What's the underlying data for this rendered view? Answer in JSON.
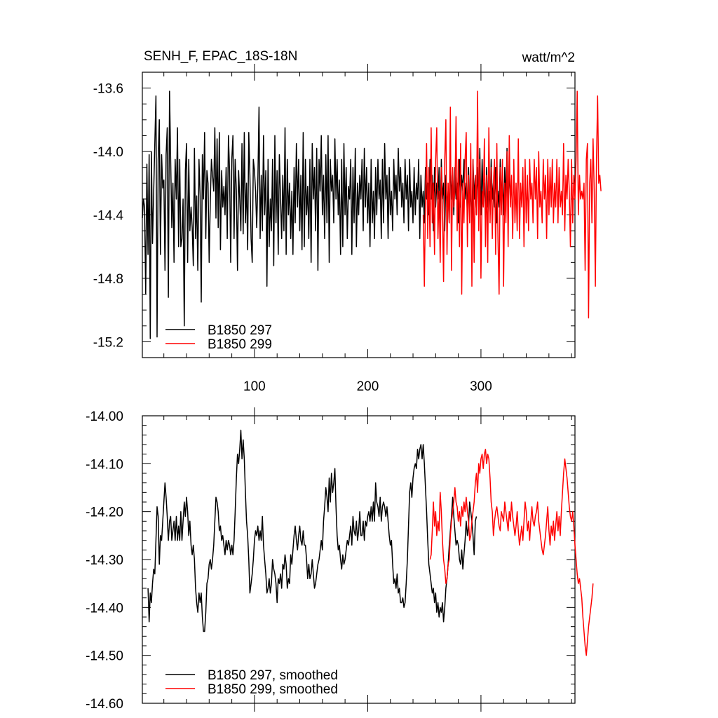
{
  "chart_data": [
    {
      "type": "line",
      "title": "SENH_F, EPAC_18S-18N",
      "units": "watt/m^2",
      "xlim": [
        1,
        383
      ],
      "ylim": [
        -15.3,
        -13.5
      ],
      "xticks": [
        100,
        200,
        300
      ],
      "xtick_labels": [
        "100",
        "200",
        "300"
      ],
      "yticks": [
        -13.6,
        -14.0,
        -14.4,
        -14.8,
        -15.2
      ],
      "ytick_labels": [
        "-13.6",
        "-14.0",
        "-14.4",
        "-14.8",
        "-15.2"
      ],
      "legend_position": "bottom-left",
      "series": [
        {
          "name": "B1850 297",
          "color": "#000000",
          "x_start": 1,
          "values": [
            -14.42,
            -14.3,
            -14.35,
            -14.9,
            -14.08,
            -14.65,
            -14.02,
            -15.18,
            -14.0,
            -14.58,
            -14.25,
            -13.95,
            -13.65,
            -15.17,
            -14.05,
            -13.8,
            -14.65,
            -14.02,
            -14.23,
            -14.18,
            -14.75,
            -14.02,
            -13.85,
            -14.92,
            -13.62,
            -14.05,
            -14.48,
            -14.2,
            -14.7,
            -14.05,
            -14.3,
            -13.85,
            -14.6,
            -14.05,
            -14.6,
            -14.55,
            -14.3,
            -15.1,
            -14.12,
            -13.95,
            -14.7,
            -14.05,
            -14.5,
            -14.35,
            -14.48,
            -14.72,
            -13.98,
            -14.55,
            -14.28,
            -14.75,
            -14.05,
            -14.28,
            -14.95,
            -14.02,
            -14.3,
            -13.88,
            -14.55,
            -14.12,
            -14.2,
            -14.7,
            -14.32,
            -14.05,
            -14.15,
            -14.25,
            -13.85,
            -14.42,
            -13.92,
            -14.48,
            -13.88,
            -14.62,
            -14.12,
            -14.35,
            -14.22,
            -14.4,
            -14.1,
            -14.55,
            -13.9,
            -14.12,
            -14.7,
            -14.05,
            -13.9,
            -14.55,
            -14.05,
            -14.25,
            -14.75,
            -14.12,
            -14.3,
            -14.5,
            -13.95,
            -14.52,
            -13.88,
            -14.45,
            -14.2,
            -14.62,
            -13.88,
            -14.15,
            -14.55,
            -14.7,
            -14.05,
            -14.12,
            -14.25,
            -14.48,
            -14.2,
            -13.72,
            -14.55,
            -14.15,
            -14.5,
            -13.9,
            -14.4,
            -14.12,
            -14.85,
            -14.05,
            -14.6,
            -14.3,
            -14.5,
            -14.05,
            -14.72,
            -13.9,
            -14.45,
            -14.12,
            -14.65,
            -14.02,
            -14.3,
            -14.55,
            -14.15,
            -14.5,
            -13.85,
            -14.65,
            -14.05,
            -14.4,
            -14.2,
            -14.55,
            -14.25,
            -14.65,
            -14.1,
            -14.45,
            -13.95,
            -14.35,
            -14.05,
            -14.5,
            -14.15,
            -14.62,
            -13.88,
            -14.6,
            -14.05,
            -14.4,
            -14.22,
            -14.55,
            -14.05,
            -14.7,
            -13.95,
            -14.3,
            -14.1,
            -14.5,
            -13.98,
            -14.75,
            -14.05,
            -14.25,
            -13.9,
            -14.4,
            -14.15,
            -14.55,
            -14.02,
            -14.45,
            -13.9,
            -14.7,
            -14.05,
            -14.25,
            -14.15,
            -14.45,
            -13.92,
            -14.3,
            -14.05,
            -14.4,
            -14.18,
            -14.65,
            -14.05,
            -14.6,
            -13.95,
            -14.4,
            -14.1,
            -14.55,
            -14.22,
            -14.3,
            -14.05,
            -14.65,
            -14.1,
            -14.45,
            -13.98,
            -14.6,
            -14.2,
            -14.4,
            -14.15,
            -14.3,
            -14.05,
            -14.5,
            -13.98,
            -14.35,
            -14.1,
            -14.45,
            -14.2,
            -14.6,
            -14.05,
            -14.45,
            -14.25,
            -14.55,
            -14.1,
            -14.4,
            -14.05,
            -14.3,
            -14.18,
            -14.55,
            -14.05,
            -14.45,
            -13.95,
            -14.3,
            -14.15,
            -14.55,
            -14.1,
            -14.4,
            -14.25,
            -14.5,
            -14.05,
            -14.3,
            -14.15,
            -14.4,
            -13.98,
            -14.25,
            -14.1,
            -14.35,
            -14.2,
            -14.45,
            -14.05,
            -14.3,
            -14.15,
            -14.5,
            -14.05,
            -14.35,
            -14.25,
            -14.45,
            -14.1,
            -14.4,
            -14.2,
            -14.3,
            -14.05,
            -14.55,
            -14.15,
            -14.35,
            -14.25,
            -14.45,
            -14.1,
            -14.3,
            -14.2,
            -14.4,
            -14.05,
            -14.3,
            -14.15,
            -14.5,
            -14.1,
            -14.35,
            -14.2,
            -14.3,
            -14.1,
            -14.45,
            -14.05,
            -14.3,
            -14.2,
            -14.5,
            -14.15,
            -14.35,
            -14.25,
            -14.45,
            -14.05,
            -14.3,
            -14.15,
            -14.4,
            -14.1,
            -14.3,
            -14.2,
            -14.45,
            -14.05,
            -14.35,
            -14.15,
            -14.25,
            -14.05,
            -14.3,
            -14.2,
            -14.4,
            -14.1,
            -14.35,
            -14.25,
            -14.45,
            -14.05,
            -14.3,
            -14.15,
            -14.4,
            -14.1,
            -14.3,
            -13.98,
            -14.4,
            -14.05,
            -14.3,
            -14.2,
            -14.45,
            -14.1,
            -14.35,
            -14.25,
            -14.4,
            -14.05,
            -14.3,
            -14.2,
            -14.35,
            -14.1,
            -14.45,
            -14.25,
            -14.35,
            -14.05,
            -14.3,
            -14.15,
            -14.4,
            -14.1,
            -14.3,
            -13.98,
            -14.35,
            -14.15,
            -14.25
          ]
        },
        {
          "name": "B1850 299",
          "color": "#ff0000",
          "x_start": 249,
          "values": [
            -14.4,
            -14.85,
            -14.3,
            -13.95,
            -14.55,
            -14.1,
            -14.6,
            -13.85,
            -14.45,
            -14.2,
            -14.65,
            -14.05,
            -13.85,
            -14.55,
            -14.25,
            -14.7,
            -14.1,
            -14.35,
            -14.82,
            -14.05,
            -13.8,
            -14.65,
            -14.2,
            -14.45,
            -13.72,
            -14.75,
            -14.1,
            -14.35,
            -14.25,
            -13.78,
            -14.5,
            -14.05,
            -14.6,
            -13.95,
            -14.9,
            -14.2,
            -14.45,
            -14.05,
            -13.88,
            -14.6,
            -14.15,
            -14.45,
            -13.95,
            -14.85,
            -14.05,
            -14.7,
            -14.15,
            -14.4,
            -13.62,
            -14.5,
            -14.05,
            -14.8,
            -14.25,
            -14.35,
            -13.92,
            -14.6,
            -14.15,
            -14.7,
            -13.85,
            -14.45,
            -14.1,
            -14.55,
            -14.2,
            -14.05,
            -14.65,
            -13.95,
            -14.55,
            -14.9,
            -14.1,
            -14.4,
            -14.05,
            -14.85,
            -14.2,
            -14.45,
            -14.0,
            -14.6,
            -13.9,
            -14.35,
            -14.15,
            -14.55,
            -14.05,
            -14.45,
            -14.2,
            -14.5,
            -13.92,
            -14.55,
            -14.2,
            -14.35,
            -14.1,
            -14.6,
            -14.05,
            -14.45,
            -14.15,
            -14.5,
            -14.05,
            -14.3,
            -14.2,
            -14.45,
            -14.05,
            -14.3,
            -14.1,
            -14.55,
            -14.0,
            -14.35,
            -14.25,
            -14.45,
            -14.05,
            -14.3,
            -14.15,
            -14.55,
            -14.05,
            -14.4,
            -14.1,
            -14.35,
            -14.05,
            -14.45,
            -14.2,
            -14.35,
            -14.05,
            -14.45,
            -14.1,
            -14.35,
            -14.25,
            -14.4,
            -13.95,
            -14.5,
            -14.15,
            -14.3,
            -14.05,
            -14.25,
            -14.6,
            -14.05,
            -14.45,
            -14.15,
            -14.3,
            -14.05,
            -13.62,
            -14.4,
            -14.15,
            -14.3,
            -14.25,
            -14.3,
            -14.2,
            -14.75,
            -14.05,
            -13.95,
            -15.05,
            -14.2,
            -14.05,
            -14.45,
            -13.92,
            -14.25,
            -14.85,
            -14.05,
            -13.65,
            -14.2,
            -14.15,
            -14.25
          ]
        }
      ]
    },
    {
      "type": "line",
      "xlim": [
        1,
        383
      ],
      "ylim": [
        -14.6,
        -14.0
      ],
      "yticks": [
        -14.0,
        -14.1,
        -14.2,
        -14.3,
        -14.4,
        -14.5,
        -14.6
      ],
      "ytick_labels": [
        "-14.00",
        "-14.10",
        "-14.20",
        "-14.30",
        "-14.40",
        "-14.50",
        "-14.60"
      ],
      "legend_position": "bottom-left",
      "series": [
        {
          "name": "B1850 297, smoothed",
          "color": "#000000",
          "x_start": 6,
          "values": [
            -14.36,
            -14.43,
            -14.37,
            -14.39,
            -14.35,
            -14.32,
            -14.33,
            -14.26,
            -14.19,
            -14.21,
            -14.31,
            -14.25,
            -14.26,
            -14.22,
            -14.18,
            -14.14,
            -14.17,
            -14.21,
            -14.26,
            -14.22,
            -14.21,
            -14.26,
            -14.24,
            -14.22,
            -14.26,
            -14.21,
            -14.26,
            -14.23,
            -14.26,
            -14.2,
            -14.26,
            -14.22,
            -14.18,
            -14.21,
            -14.17,
            -14.2,
            -14.25,
            -14.22,
            -14.27,
            -14.29,
            -14.27,
            -14.3,
            -14.36,
            -14.39,
            -14.41,
            -14.37,
            -14.39,
            -14.37,
            -14.42,
            -14.45,
            -14.45,
            -14.41,
            -14.35,
            -14.34,
            -14.31,
            -14.3,
            -14.32,
            -14.3,
            -14.27,
            -14.22,
            -14.17,
            -14.18,
            -14.2,
            -14.24,
            -14.23,
            -14.26,
            -14.25,
            -14.27,
            -14.29,
            -14.26,
            -14.28,
            -14.26,
            -14.27,
            -14.29,
            -14.27,
            -14.29,
            -14.26,
            -14.2,
            -14.13,
            -14.08,
            -14.1,
            -14.07,
            -14.03,
            -14.09,
            -14.05,
            -14.09,
            -14.16,
            -14.22,
            -14.25,
            -14.3,
            -14.37,
            -14.35,
            -14.33,
            -14.3,
            -14.26,
            -14.24,
            -14.25,
            -14.23,
            -14.26,
            -14.24,
            -14.26,
            -14.21,
            -14.27,
            -14.3,
            -14.33,
            -14.37,
            -14.36,
            -14.34,
            -14.37,
            -14.35,
            -14.3,
            -14.32,
            -14.33,
            -14.35,
            -14.39,
            -14.34,
            -14.35,
            -14.33,
            -14.36,
            -14.31,
            -14.32,
            -14.29,
            -14.31,
            -14.36,
            -14.34,
            -14.35,
            -14.29,
            -14.31,
            -14.28,
            -14.25,
            -14.23,
            -14.26,
            -14.28,
            -14.25,
            -14.23,
            -14.26,
            -14.27,
            -14.24,
            -14.27,
            -14.27,
            -14.3,
            -14.34,
            -14.31,
            -14.34,
            -14.33,
            -14.3,
            -14.33,
            -14.36,
            -14.35,
            -14.33,
            -14.31,
            -14.3,
            -14.28,
            -14.26,
            -14.28,
            -14.22,
            -14.19,
            -14.15,
            -14.17,
            -14.2,
            -14.13,
            -14.18,
            -14.12,
            -14.16,
            -14.14,
            -14.11,
            -14.19,
            -14.25,
            -14.28,
            -14.27,
            -14.3,
            -14.32,
            -14.29,
            -14.31,
            -14.3,
            -14.28,
            -14.26,
            -14.27,
            -14.25,
            -14.23,
            -14.27,
            -14.21,
            -14.24,
            -14.25,
            -14.22,
            -14.26,
            -14.24,
            -14.2,
            -14.25,
            -14.25,
            -14.22,
            -14.26,
            -14.22,
            -14.23,
            -14.21,
            -14.2,
            -14.22,
            -14.19,
            -14.22,
            -14.18,
            -14.22,
            -14.14,
            -14.18,
            -14.19,
            -14.21,
            -14.17,
            -14.22,
            -14.19,
            -14.18,
            -14.19,
            -14.21,
            -14.19,
            -14.22,
            -14.25,
            -14.27,
            -14.26,
            -14.31,
            -14.35,
            -14.34,
            -14.36,
            -14.33,
            -14.37,
            -14.36,
            -14.39,
            -14.39,
            -14.38,
            -14.4,
            -14.39,
            -14.35,
            -14.3,
            -14.23,
            -14.16,
            -14.14,
            -14.17,
            -14.13,
            -14.11,
            -14.1,
            -14.11,
            -14.07,
            -14.09,
            -14.07,
            -14.06,
            -14.09,
            -14.06,
            -14.1,
            -14.15,
            -14.2,
            -14.26,
            -14.31,
            -14.33,
            -14.35,
            -14.37,
            -14.36,
            -14.39,
            -14.37,
            -14.41,
            -14.39,
            -14.42,
            -14.4,
            -14.41,
            -14.39,
            -14.43,
            -14.4,
            -14.36,
            -14.34,
            -14.31,
            -14.27,
            -14.24,
            -14.21,
            -14.17,
            -14.21,
            -14.24,
            -14.27,
            -14.26,
            -14.27,
            -14.3,
            -14.31,
            -14.28,
            -14.32,
            -14.29,
            -14.26,
            -14.22,
            -14.25,
            -14.23,
            -14.18,
            -14.2,
            -14.22,
            -14.25,
            -14.29,
            -14.22,
            -14.21
          ]
        },
        {
          "name": "B1850 299, smoothed",
          "color": "#ff0000",
          "x_start": 255,
          "values": [
            -14.3,
            -14.29,
            -14.24,
            -14.18,
            -14.23,
            -14.2,
            -14.25,
            -14.22,
            -14.24,
            -14.16,
            -14.2,
            -14.26,
            -14.3,
            -14.32,
            -14.35,
            -14.34,
            -14.31,
            -14.3,
            -14.25,
            -14.22,
            -14.2,
            -14.18,
            -14.15,
            -14.18,
            -14.19,
            -14.22,
            -14.2,
            -14.23,
            -14.19,
            -14.21,
            -14.18,
            -14.2,
            -14.17,
            -14.2,
            -14.22,
            -14.26,
            -14.25,
            -14.22,
            -14.2,
            -14.18,
            -14.14,
            -14.12,
            -14.16,
            -14.1,
            -14.12,
            -14.09,
            -14.08,
            -14.11,
            -14.08,
            -14.07,
            -14.1,
            -14.08,
            -14.09,
            -14.13,
            -14.18,
            -14.2,
            -14.25,
            -14.22,
            -14.2,
            -14.19,
            -14.21,
            -14.23,
            -14.24,
            -14.2,
            -14.21,
            -14.22,
            -14.18,
            -14.2,
            -14.22,
            -14.24,
            -14.2,
            -14.22,
            -14.18,
            -14.21,
            -14.23,
            -14.25,
            -14.23,
            -14.2,
            -14.24,
            -14.27,
            -14.25,
            -14.23,
            -14.26,
            -14.22,
            -14.18,
            -14.2,
            -14.24,
            -14.22,
            -14.26,
            -14.22,
            -14.19,
            -14.22,
            -14.23,
            -14.21,
            -14.2,
            -14.18,
            -14.22,
            -14.24,
            -14.26,
            -14.28,
            -14.29,
            -14.27,
            -14.25,
            -14.22,
            -14.19,
            -14.24,
            -14.27,
            -14.23,
            -14.25,
            -14.22,
            -14.26,
            -14.23,
            -14.2,
            -14.24,
            -14.21,
            -14.25,
            -14.2,
            -14.16,
            -14.12,
            -14.09,
            -14.11,
            -14.13,
            -14.16,
            -14.19,
            -14.21,
            -14.22,
            -14.2,
            -14.23,
            -14.27,
            -14.3,
            -14.33,
            -14.35,
            -14.34,
            -14.36,
            -14.38,
            -14.42,
            -14.45,
            -14.48,
            -14.5,
            -14.47,
            -14.44,
            -14.42,
            -14.4,
            -14.38,
            -14.35
          ]
        }
      ]
    }
  ]
}
